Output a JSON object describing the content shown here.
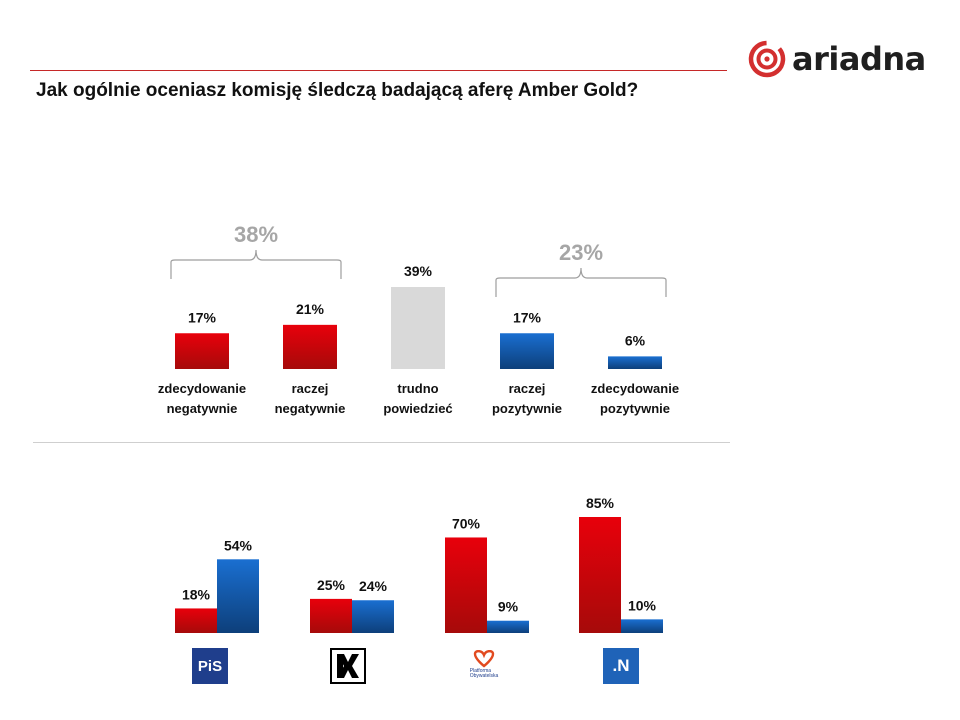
{
  "brand": {
    "name": "ariadna"
  },
  "title": "Jak ogólnie oceniasz komisję śledczą badającą aferę Amber Gold?",
  "colors": {
    "red": "#e8000b",
    "red_dark": "#a60a0a",
    "blue": "#1a6fd1",
    "blue_dark": "#0d3f7a",
    "gray": "#d9d9d9",
    "accent_line": "#c62828",
    "group_label": "#a6a6a6"
  },
  "chart_data": [
    {
      "type": "bar",
      "categories": [
        [
          "zdecydowanie",
          "negatywnie"
        ],
        [
          "raczej",
          "negatywnie"
        ],
        [
          "trudno",
          "powiedzieć"
        ],
        [
          "raczej",
          "pozytywnie"
        ],
        [
          "zdecydowanie",
          "pozytywnie"
        ]
      ],
      "values": [
        17,
        21,
        39,
        17,
        6
      ],
      "value_labels": [
        "17%",
        "21%",
        "39%",
        "17%",
        "6%"
      ],
      "bar_colors": [
        "red",
        "red",
        "gray",
        "blue",
        "blue"
      ],
      "groups": [
        {
          "label": "38%",
          "from": 0,
          "to": 1
        },
        {
          "label": "23%",
          "from": 3,
          "to": 4
        }
      ],
      "ylim": [
        0,
        39
      ]
    },
    {
      "type": "bar",
      "categories": [
        "PiS",
        "Kukiz'15",
        "Platforma Obywatelska",
        "Nowoczesna"
      ],
      "series": [
        {
          "values": [
            18,
            25,
            70,
            85
          ],
          "value_labels": [
            "18%",
            "25%",
            "70%",
            "85%"
          ],
          "color": "red"
        },
        {
          "values": [
            54,
            24,
            9,
            10
          ],
          "value_labels": [
            "54%",
            "24%",
            "9%",
            "10%"
          ],
          "color": "blue"
        }
      ],
      "logos": [
        "PiS",
        "",
        "Platforma Obywatelska",
        ".N"
      ],
      "ylim": [
        0,
        85
      ]
    }
  ]
}
